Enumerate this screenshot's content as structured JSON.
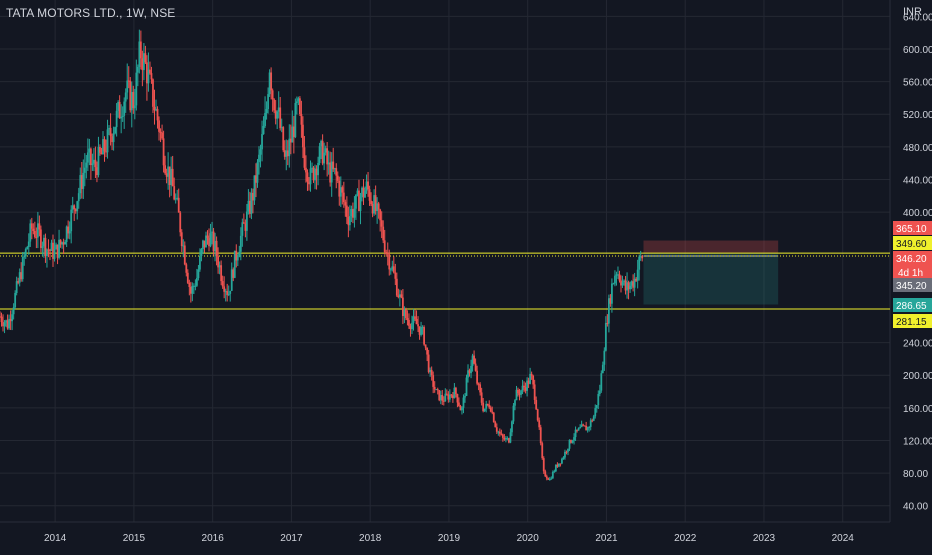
{
  "header": {
    "title": "TATA MOTORS LTD., 1W, NSE",
    "currency": "INR"
  },
  "colors": {
    "background": "#131722",
    "grid": "#242833",
    "up": "#26a69a",
    "down": "#ef5350",
    "level_line": "#f0f02c",
    "axis_text": "#d1d4dc",
    "stop_zone": "#ef5350",
    "target_zone": "#26a69a"
  },
  "chart_data": {
    "type": "candlestick",
    "interval": "1W",
    "y_axis": {
      "min": 20,
      "max": 660,
      "ticks": [
        40,
        80,
        120,
        160,
        200,
        240,
        400,
        440,
        480,
        520,
        560,
        600,
        640
      ],
      "tick_labels": [
        "40.00",
        "80.00",
        "120.00",
        "160.00",
        "200.00",
        "240.00",
        "400.00",
        "440.00",
        "480.00",
        "520.00",
        "560.00",
        "600.00",
        "640.00"
      ]
    },
    "x_axis": {
      "start": 2013.3,
      "end": 2024.6,
      "ticks": [
        "2014",
        "2015",
        "2016",
        "2017",
        "2018",
        "2019",
        "2020",
        "2021",
        "2022",
        "2023",
        "2024"
      ]
    },
    "horizontal_lines": [
      {
        "value": 349.6,
        "style": "solid"
      },
      {
        "value": 346.2,
        "style": "dotted"
      },
      {
        "value": 281.15,
        "style": "solid"
      }
    ],
    "position_tool": {
      "start": 2021.47,
      "end": 2023.18,
      "entry": 349.6,
      "stop": 365.1,
      "target": 286.65
    },
    "price_labels": [
      {
        "value": 365.1,
        "text": "365.10",
        "bg": "#ef5350",
        "fg": "#ffffff"
      },
      {
        "value": 349.6,
        "text": "349.60",
        "bg": "#f0f02c",
        "fg": "#131722"
      },
      {
        "value": 346.2,
        "text": "346.20",
        "sub": "4d 1h",
        "bg": "#ef5350",
        "fg": "#ffffff"
      },
      {
        "value": 345.2,
        "text": "345.20",
        "bg": "#6a6d78",
        "fg": "#ffffff"
      },
      {
        "value": 286.65,
        "text": "286.65",
        "bg": "#26a69a",
        "fg": "#ffffff"
      },
      {
        "value": 281.15,
        "text": "281.15",
        "bg": "#f0f02c",
        "fg": "#131722"
      }
    ],
    "closes": [
      [
        2013.3,
        272
      ],
      [
        2013.4,
        262
      ],
      [
        2013.5,
        300
      ],
      [
        2013.6,
        340
      ],
      [
        2013.7,
        380
      ],
      [
        2013.8,
        372
      ],
      [
        2013.9,
        355
      ],
      [
        2014.0,
        350
      ],
      [
        2014.1,
        365
      ],
      [
        2014.2,
        395
      ],
      [
        2014.3,
        425
      ],
      [
        2014.4,
        465
      ],
      [
        2014.5,
        455
      ],
      [
        2014.6,
        472
      ],
      [
        2014.7,
        495
      ],
      [
        2014.8,
        520
      ],
      [
        2014.9,
        548
      ],
      [
        2015.0,
        535
      ],
      [
        2015.08,
        598
      ],
      [
        2015.16,
        575
      ],
      [
        2015.24,
        540
      ],
      [
        2015.32,
        505
      ],
      [
        2015.4,
        462
      ],
      [
        2015.48,
        435
      ],
      [
        2015.56,
        400
      ],
      [
        2015.64,
        350
      ],
      [
        2015.72,
        300
      ],
      [
        2015.8,
        320
      ],
      [
        2015.88,
        360
      ],
      [
        2015.96,
        372
      ],
      [
        2016.04,
        352
      ],
      [
        2016.12,
        320
      ],
      [
        2016.2,
        300
      ],
      [
        2016.28,
        340
      ],
      [
        2016.36,
        370
      ],
      [
        2016.44,
        395
      ],
      [
        2016.52,
        425
      ],
      [
        2016.6,
        470
      ],
      [
        2016.68,
        520
      ],
      [
        2016.72,
        585
      ],
      [
        2016.76,
        545
      ],
      [
        2016.84,
        515
      ],
      [
        2016.92,
        460
      ],
      [
        2017.0,
        492
      ],
      [
        2017.08,
        530
      ],
      [
        2017.16,
        470
      ],
      [
        2017.24,
        440
      ],
      [
        2017.32,
        462
      ],
      [
        2017.4,
        475
      ],
      [
        2017.48,
        450
      ],
      [
        2017.56,
        445
      ],
      [
        2017.64,
        420
      ],
      [
        2017.72,
        395
      ],
      [
        2017.8,
        405
      ],
      [
        2017.88,
        420
      ],
      [
        2017.96,
        430
      ],
      [
        2018.04,
        410
      ],
      [
        2018.12,
        388
      ],
      [
        2018.2,
        355
      ],
      [
        2018.28,
        330
      ],
      [
        2018.36,
        300
      ],
      [
        2018.44,
        272
      ],
      [
        2018.52,
        265
      ],
      [
        2018.6,
        262
      ],
      [
        2018.68,
        248
      ],
      [
        2018.76,
        200
      ],
      [
        2018.84,
        178
      ],
      [
        2018.92,
        170
      ],
      [
        2019.0,
        175
      ],
      [
        2019.08,
        180
      ],
      [
        2019.16,
        155
      ],
      [
        2019.24,
        200
      ],
      [
        2019.3,
        222
      ],
      [
        2019.36,
        190
      ],
      [
        2019.44,
        158
      ],
      [
        2019.52,
        165
      ],
      [
        2019.6,
        135
      ],
      [
        2019.68,
        122
      ],
      [
        2019.76,
        120
      ],
      [
        2019.84,
        175
      ],
      [
        2019.92,
        182
      ],
      [
        2020.0,
        190
      ],
      [
        2020.04,
        200
      ],
      [
        2020.1,
        170
      ],
      [
        2020.16,
        120
      ],
      [
        2020.2,
        80
      ],
      [
        2020.28,
        72
      ],
      [
        2020.36,
        88
      ],
      [
        2020.44,
        98
      ],
      [
        2020.52,
        115
      ],
      [
        2020.6,
        128
      ],
      [
        2020.68,
        135
      ],
      [
        2020.76,
        135
      ],
      [
        2020.84,
        150
      ],
      [
        2020.92,
        185
      ],
      [
        2021.0,
        265
      ],
      [
        2021.06,
        305
      ],
      [
        2021.12,
        330
      ],
      [
        2021.18,
        320
      ],
      [
        2021.24,
        305
      ],
      [
        2021.3,
        310
      ],
      [
        2021.36,
        318
      ],
      [
        2021.42,
        340
      ],
      [
        2021.47,
        348
      ]
    ]
  }
}
